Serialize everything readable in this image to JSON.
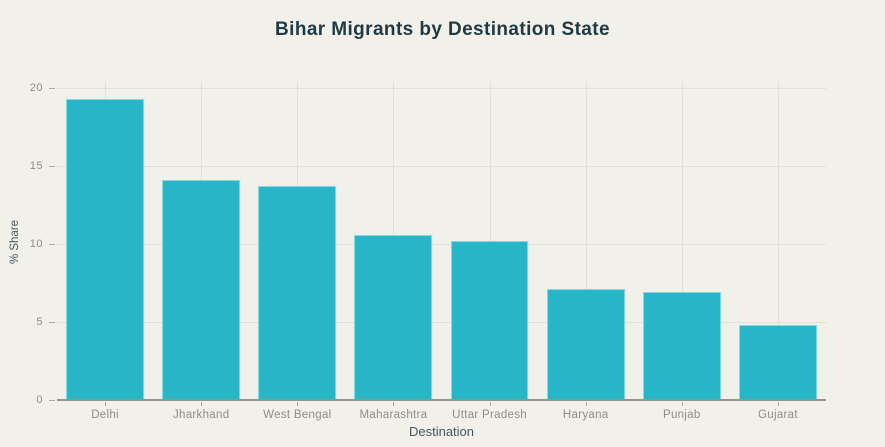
{
  "header": {
    "title": "Bihar Migrants by Destination State"
  },
  "colors": {
    "background": "#f1f0e9",
    "bar": "#29b5c8",
    "gridline": "#e2e1d8",
    "axis_line": "#95948d",
    "tick_label": "#8e8d86",
    "axis_title": "#47565d",
    "title": "#1f3a45"
  },
  "chart_data": {
    "type": "bar",
    "title": "Bihar Migrants by Destination State",
    "categories": [
      "Delhi",
      "Jharkhand",
      "West Bengal",
      "Maharashtra",
      "Uttar Pradesh",
      "Haryana",
      "Punjab",
      "Gujarat"
    ],
    "values": [
      19.3,
      14.1,
      13.7,
      10.6,
      10.2,
      7.1,
      6.9,
      4.8
    ],
    "xlabel": "Destination",
    "ylabel": "% Share",
    "ylim": [
      0,
      20
    ],
    "yticks": [
      0,
      5,
      10,
      15,
      20
    ],
    "grid": true,
    "legend": "none",
    "bar_color": "#29b5c8"
  }
}
